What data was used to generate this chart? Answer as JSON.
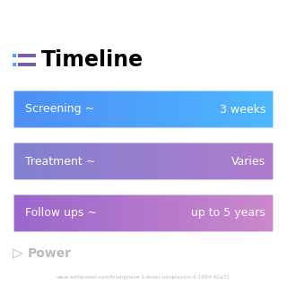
{
  "title": "Timeline",
  "background_color": "#ffffff",
  "title_color": "#000000",
  "title_fontsize": 17,
  "title_fontweight": "bold",
  "icon_color": "#7b5ea7",
  "icon_dot_color": "#5b9bf8",
  "rows": [
    {
      "label": "Screening ~",
      "value": "3 weeks",
      "color_left": "#4d8df5",
      "color_right": "#4db8ff"
    },
    {
      "label": "Treatment ~",
      "value": "Varies",
      "color_left": "#8080d0",
      "color_right": "#b07ccc"
    },
    {
      "label": "Follow ups ~",
      "value": "up to 5 years",
      "color_left": "#9966cc",
      "color_right": "#cc88cc"
    }
  ],
  "watermark_text": "Power",
  "watermark_color": "#bbbbbb",
  "url_text": "www.withpower.com/trial/phase-1-brain-neoplasms-4-1994-42a31",
  "url_color": "#bbbbbb",
  "label_fontsize": 9,
  "value_fontsize": 9,
  "label_color": "#ffffff",
  "value_color": "#ffffff"
}
